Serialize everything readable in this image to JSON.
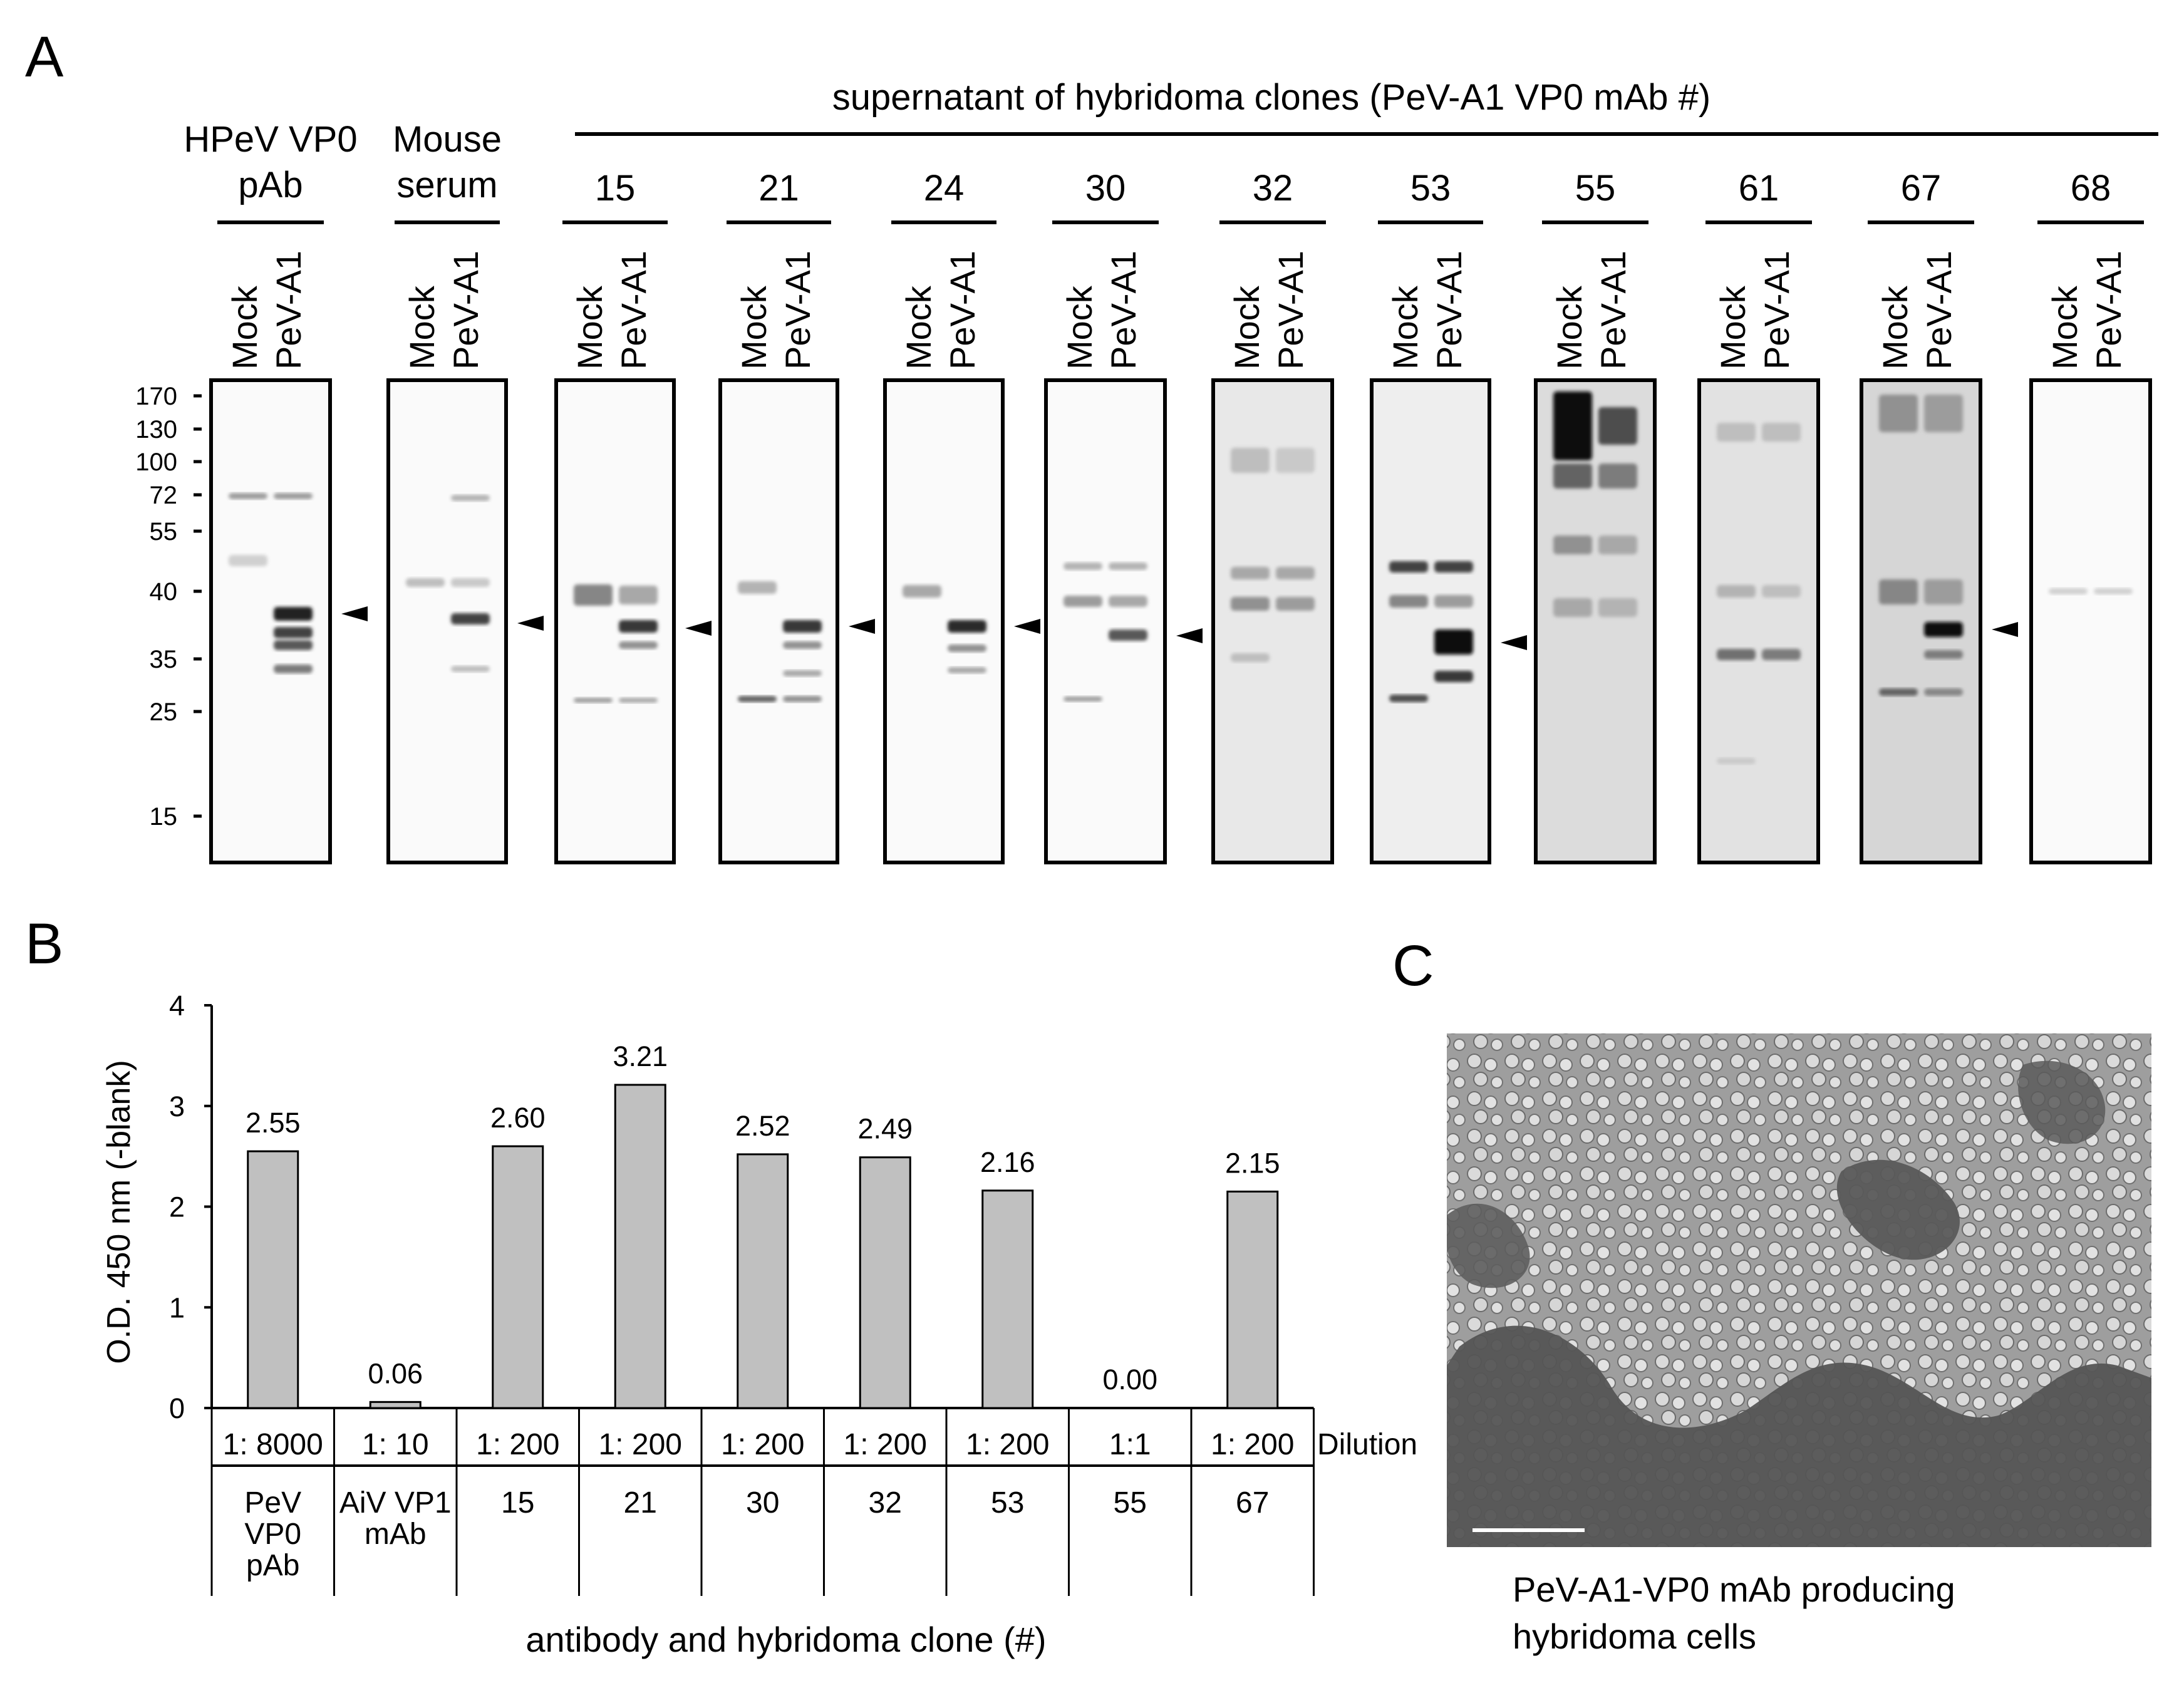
{
  "panel_a": {
    "letter": "A",
    "group_header": "supernatant of hybridoma clones (PeV-A1 VP0 mAb #)",
    "mw_markers": [
      "170",
      "130",
      "100",
      "72",
      "55",
      "40",
      "35",
      "25",
      "15"
    ],
    "lane_labels": [
      "Mock",
      "PeV-A1"
    ],
    "blots": [
      {
        "title_lines": [
          "HPeV VP0",
          "pAb"
        ],
        "arrow": true
      },
      {
        "title_lines": [
          "Mouse",
          "serum"
        ],
        "arrow": true
      },
      {
        "title_lines": [
          "15"
        ],
        "arrow": true
      },
      {
        "title_lines": [
          "21"
        ],
        "arrow": true
      },
      {
        "title_lines": [
          "24"
        ],
        "arrow": true
      },
      {
        "title_lines": [
          "30"
        ],
        "arrow": true
      },
      {
        "title_lines": [
          "32"
        ],
        "arrow": false
      },
      {
        "title_lines": [
          "53"
        ],
        "arrow": true
      },
      {
        "title_lines": [
          "55"
        ],
        "arrow": false
      },
      {
        "title_lines": [
          "61"
        ],
        "arrow": false
      },
      {
        "title_lines": [
          "67"
        ],
        "arrow": true
      },
      {
        "title_lines": [
          "68"
        ],
        "arrow": false
      }
    ]
  },
  "panel_b": {
    "letter": "B",
    "dilution_label": "Dilution",
    "antibody_labels": [
      [
        "PeV",
        "VP0",
        "pAb"
      ],
      [
        "AiV VP1",
        "mAb"
      ],
      [
        "15"
      ],
      [
        "21"
      ],
      [
        "30"
      ],
      [
        "32"
      ],
      [
        "53"
      ],
      [
        "55"
      ],
      [
        "67"
      ]
    ]
  },
  "chart_data": {
    "type": "bar",
    "title": "",
    "xlabel": "antibody and hybridoma clone (#)",
    "ylabel": "O.D. 450 nm (-blank)",
    "ylim": [
      0,
      4
    ],
    "yticks": [
      "0",
      "1",
      "2",
      "3",
      "4"
    ],
    "categories": [
      "PeV VP0 pAb",
      "AiV VP1 mAb",
      "15",
      "21",
      "30",
      "32",
      "53",
      "55",
      "67"
    ],
    "dilutions": [
      "1: 8000",
      "1: 10",
      "1: 200",
      "1: 200",
      "1: 200",
      "1: 200",
      "1: 200",
      "1:1",
      "1: 200"
    ],
    "values": [
      2.55,
      0.06,
      2.6,
      3.21,
      2.52,
      2.49,
      2.16,
      0.0,
      2.15
    ],
    "value_labels": [
      "2.55",
      "0.06",
      "2.60",
      "3.21",
      "2.52",
      "2.49",
      "2.16",
      "0.00",
      "2.15"
    ],
    "bar_color": "#c0c0c0",
    "grid": false,
    "legend": "none"
  },
  "panel_c": {
    "letter": "C",
    "caption_lines": [
      "PeV-A1-VP0 mAb producing",
      "hybridoma cells"
    ]
  }
}
